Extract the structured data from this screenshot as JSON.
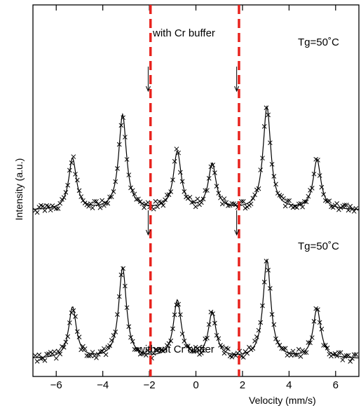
{
  "chart_data": {
    "type": "scatter",
    "title": "",
    "xlabel": "Velocity (mm/s)",
    "ylabel": "Intensity (a.u.)",
    "xlim": [
      -7,
      7
    ],
    "xticks": [
      -6,
      -4,
      -2,
      0,
      2,
      4,
      6
    ],
    "xtick_labels": [
      "−6",
      "−4",
      "−2",
      "0",
      "2",
      "4",
      "6"
    ],
    "grid": false,
    "legend": "none",
    "colors": {
      "data": "#000000",
      "fit": "#000000",
      "marker_line": "#e8231e"
    },
    "vertical_markers": [
      -1.95,
      1.85
    ],
    "annotations": {
      "top_label": "with Cr buffer",
      "bottom_label": "without Cr buffer",
      "tg_top": "Tg=50˚C",
      "tg_bottom": "Tg=50˚C"
    },
    "arrows": [
      {
        "spectrum": "top",
        "x": -2.05
      },
      {
        "spectrum": "top",
        "x": 1.75
      },
      {
        "spectrum": "bottom",
        "x": -2.05
      },
      {
        "spectrum": "bottom",
        "x": 1.75
      }
    ],
    "series": [
      {
        "name": "with Cr buffer",
        "baseline": 300,
        "sites": [
          {
            "pos": -5.3,
            "amp": 3.4,
            "w": 0.2
          },
          {
            "pos": -3.15,
            "amp": 6.3,
            "w": 0.2
          },
          {
            "pos": -0.8,
            "amp": 3.8,
            "w": 0.2
          },
          {
            "pos": 0.7,
            "amp": 3.0,
            "w": 0.2
          },
          {
            "pos": 3.05,
            "amp": 6.8,
            "w": 0.2
          },
          {
            "pos": 5.2,
            "amp": 3.3,
            "w": 0.2
          }
        ]
      },
      {
        "name": "without Cr buffer",
        "baseline": 512,
        "sites": [
          {
            "pos": -5.3,
            "amp": 3.4,
            "w": 0.2
          },
          {
            "pos": -3.15,
            "amp": 6.0,
            "w": 0.2
          },
          {
            "pos": -0.8,
            "amp": 3.8,
            "w": 0.2
          },
          {
            "pos": 0.7,
            "amp": 3.0,
            "w": 0.2
          },
          {
            "pos": 3.05,
            "amp": 6.5,
            "w": 0.2
          },
          {
            "pos": 5.2,
            "amp": 3.3,
            "w": 0.2
          }
        ]
      }
    ]
  }
}
